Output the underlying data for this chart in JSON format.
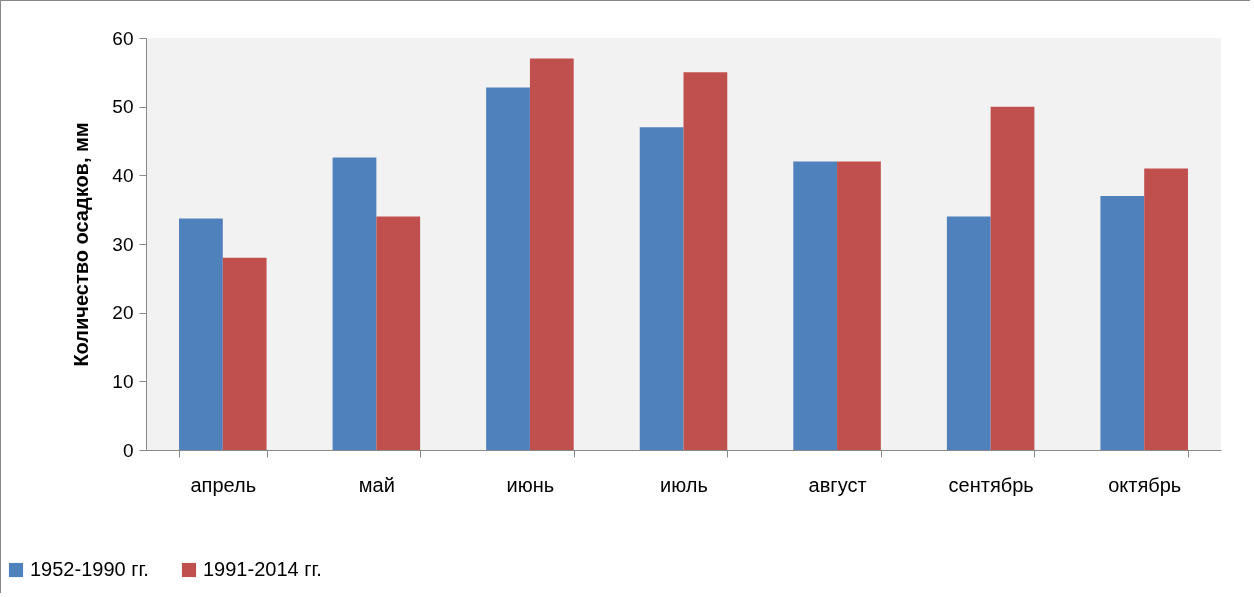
{
  "chart_data": {
    "type": "bar",
    "ylabel": "Количество осадков, мм",
    "categories": [
      "апрель",
      "май",
      "июнь",
      "июль",
      "август",
      "сентябрь",
      "октябрь"
    ],
    "series": [
      {
        "name": "1952-1990 гг.",
        "color": "#4f81bd",
        "values": [
          33.7,
          42.6,
          52.8,
          47,
          42,
          34,
          37
        ]
      },
      {
        "name": "1991-2014 гг.",
        "color": "#c0504d",
        "values": [
          28,
          34,
          57,
          55,
          42,
          50,
          41
        ]
      }
    ],
    "ylim": [
      0,
      60
    ],
    "yticks": [
      0,
      10,
      20,
      30,
      40,
      50,
      60
    ],
    "legend": "bottom left"
  }
}
